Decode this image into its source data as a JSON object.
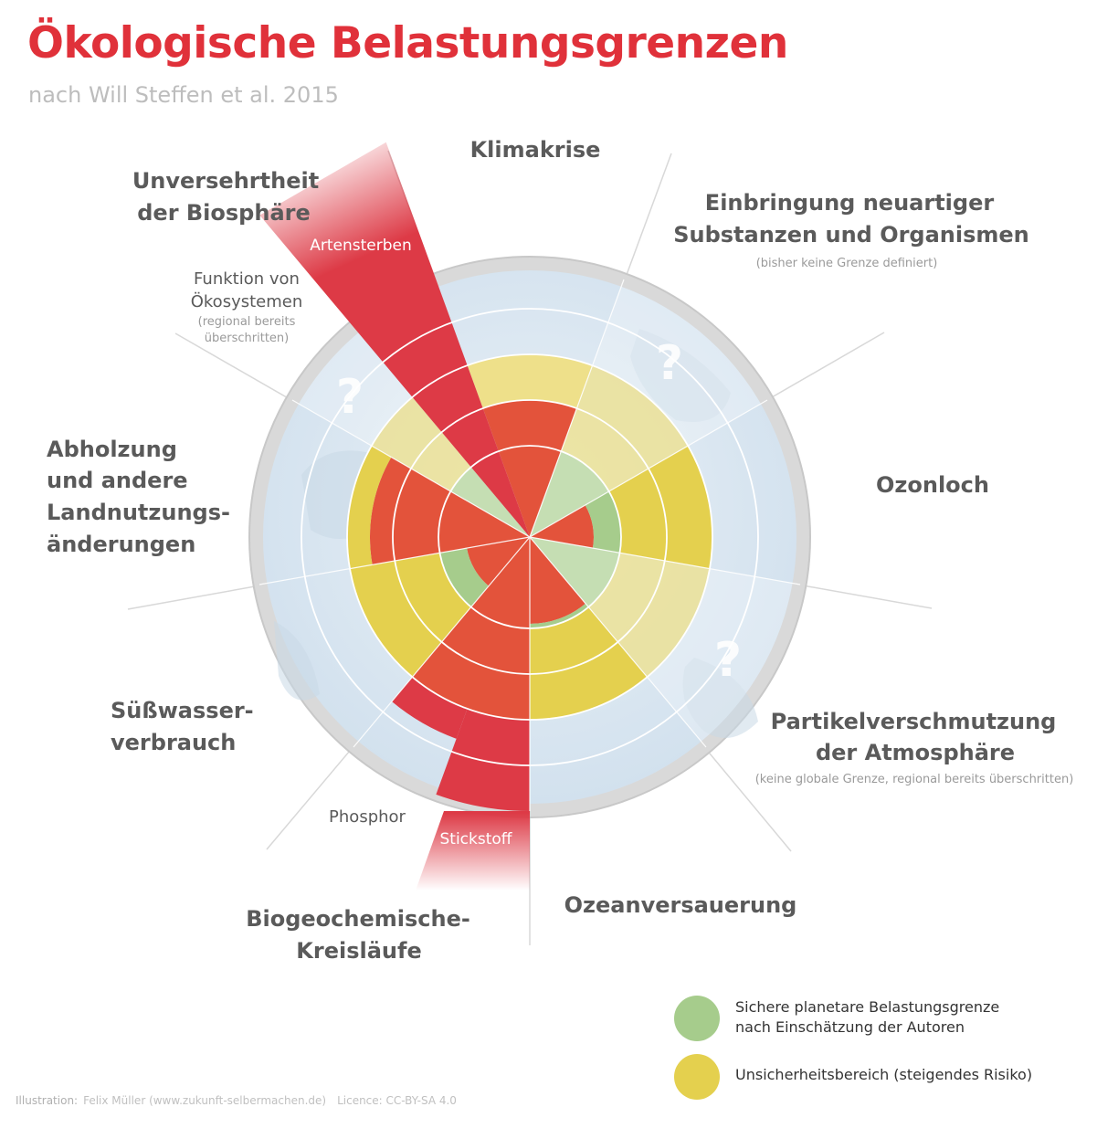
{
  "title": "Ökologische Belastungsgrenzen",
  "subtitle": "nach Will Steffen et al. 2015",
  "colors": {
    "title": "#e0313a",
    "safe": "#a6cc8c",
    "safe_light": "#c5deb3",
    "uncertain": "#e4d04e",
    "uncertain_light": "#eee08a",
    "high_risk": "#e3533b",
    "beyond": "#dd3a46",
    "globe": "#dce8f2",
    "label": "#5a5a5a",
    "note": "#9a9a9a"
  },
  "sectors": {
    "klima": {
      "title": "Klimakrise",
      "status": "Unsicherheitsbereich (steigendes Risiko)",
      "values": {
        "safe": 0.36,
        "uncertain": 0.72,
        "risk": 1.2
      }
    },
    "substanzen": {
      "title_l1": "Einbringung neuartiger",
      "title_l2": "Substanzen und Organismen",
      "note": "(bisher keine Grenze definiert)",
      "mark": "?"
    },
    "ozon": {
      "title": "Ozonloch",
      "status": "Sichere planetare Belastungsgrenze",
      "values": {
        "safe": 0.36
      }
    },
    "partikel": {
      "title_l1": "Partikelverschmutzung",
      "title_l2": "der Atmosphäre",
      "note": "(keine globale Grenze, regional bereits überschritten)",
      "mark": "?"
    },
    "ozean": {
      "title": "Ozeanversauerung",
      "status": "Sichere planetare Belastungsgrenze",
      "values": {
        "safe": 0.36
      }
    },
    "kreislaeufe": {
      "title_l1": "Biogeochemische-",
      "title_l2": "Kreisläufe",
      "phosphor": "Phosphor",
      "stickstoff": "Stickstoff",
      "values": {
        "phosphor": 2.3,
        "stickstoff": 3.2
      }
    },
    "suesswasser": {
      "title_l1": "Süßwasser-",
      "title_l2": "verbrauch",
      "status": "Sichere planetare Belastungsgrenze",
      "values": {
        "safe": 0.36
      }
    },
    "landnutzung": {
      "title_l1": "Abholzung",
      "title_l2": "und andere",
      "title_l3": "Landnutzungs-",
      "title_l4": "änderungen",
      "status": "Unsicherheitsbereich (steigendes Risiko)",
      "values": {
        "safe": 0.36,
        "uncertain": 0.72,
        "risk": 1.05
      }
    },
    "biosphaere": {
      "title_l1": "Unversehrtheit",
      "title_l2": "der Biosphäre",
      "artensterben": "Artensterben",
      "funktion_l1": "Funktion von",
      "funktion_l2": "Ökosystemen",
      "funktion_note_l1": "(regional bereits",
      "funktion_note_l2": "überschritten)",
      "mark": "?",
      "values": {
        "artensterben": 5.0
      }
    }
  },
  "legend": {
    "safe_l1": "Sichere planetare Belastungsgrenze",
    "safe_l2": "nach Einschätzung der Autoren",
    "uncertain": "Unsicherheitsbereich (steigendes Risiko)"
  },
  "credits": {
    "label": "Illustration:",
    "author": "Felix Müller (www.zukunft-selbermachen.de)",
    "licence": "Licence: CC-BY-SA 4.0"
  }
}
